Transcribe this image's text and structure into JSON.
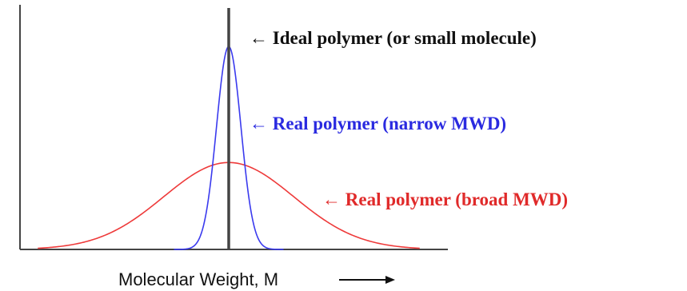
{
  "chart_data": {
    "type": "line",
    "title": "",
    "xlabel": "Molecular Weight, M",
    "ylabel": "",
    "xlim": [
      0,
      100
    ],
    "ylim": [
      0,
      100
    ],
    "grid": false,
    "legend": "none",
    "series": [
      {
        "name": "Ideal polymer (or small molecule)",
        "kind": "spike",
        "color": "#444444",
        "x": 50,
        "peak": 100
      },
      {
        "name": "Real polymer (narrow MWD)",
        "kind": "gaussian",
        "color": "#3a3aee",
        "center": 50,
        "sigma": 3.0,
        "peak": 84
      },
      {
        "name": "Real polymer (broad MWD)",
        "kind": "gaussian",
        "color": "#ee3a3a",
        "center": 50,
        "sigma": 16,
        "peak": 36
      }
    ],
    "annotations": [
      {
        "text": "← Ideal polymer (or small molecule)",
        "color": "#111111",
        "target": "Ideal polymer (or small molecule)"
      },
      {
        "text": "← Real polymer (narrow MWD)",
        "color": "#2a2ae0",
        "target": "Real polymer (narrow MWD)"
      },
      {
        "text": "← Real polymer (broad MWD)",
        "color": "#e02a2a",
        "target": "Real polymer (broad MWD)"
      }
    ]
  }
}
